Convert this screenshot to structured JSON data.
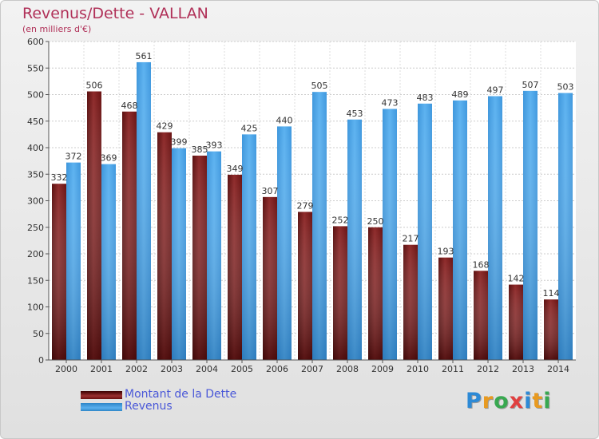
{
  "title": "Revenus/Dette - VALLAN",
  "subtitle": "(en milliers d'€)",
  "legend": {
    "debt_label": "Montant de la Dette",
    "revenue_label": "Revenus"
  },
  "logo": {
    "letters": [
      "P",
      "r",
      "o",
      "x",
      "i",
      "t",
      "i"
    ],
    "colors": [
      "#2d8ad6",
      "#e89a20",
      "#38a850",
      "#e04040",
      "#2d8ad6",
      "#e89a20",
      "#38a850"
    ]
  },
  "colors": {
    "debt": "#7a1e1e",
    "revenue": "#4aa3e6",
    "title": "#b03058",
    "legend_text": "#4a58d8"
  },
  "chart_data": {
    "type": "bar",
    "categories": [
      "2000",
      "2001",
      "2002",
      "2003",
      "2004",
      "2005",
      "2006",
      "2007",
      "2008",
      "2009",
      "2010",
      "2011",
      "2012",
      "2013",
      "2014"
    ],
    "series": [
      {
        "name": "Montant de la Dette",
        "values": [
          332,
          506,
          468,
          429,
          385,
          349,
          307,
          279,
          252,
          250,
          217,
          193,
          168,
          142,
          114
        ]
      },
      {
        "name": "Revenus",
        "values": [
          372,
          369,
          561,
          399,
          393,
          425,
          440,
          505,
          453,
          473,
          483,
          489,
          497,
          507,
          503
        ]
      }
    ],
    "yticks": [
      "0",
      "50",
      "100",
      "150",
      "200",
      "250",
      "300",
      "350",
      "400",
      "450",
      "500",
      "550",
      "600"
    ],
    "ylim": [
      0,
      600
    ],
    "grid": true,
    "legend_position": "bottom-left",
    "data_labels": true
  }
}
